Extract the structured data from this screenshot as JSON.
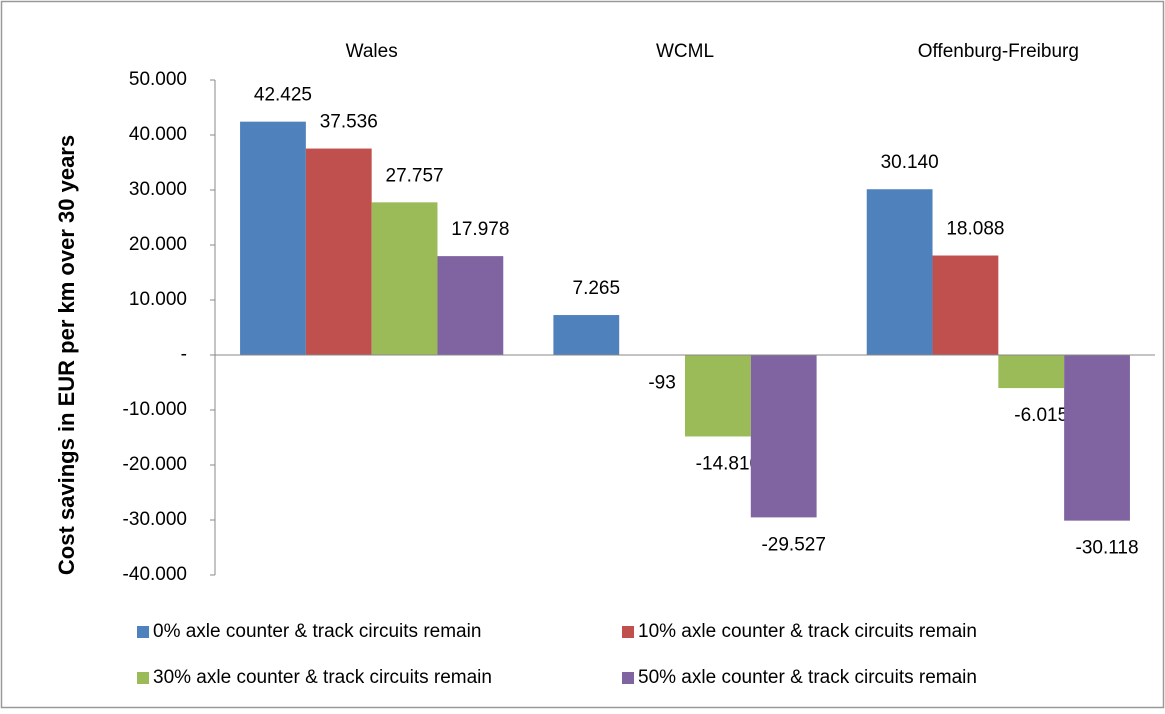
{
  "chart_data": {
    "type": "bar",
    "y_label": "Cost savings in EUR per km over 30 years",
    "categories": [
      "Wales",
      "WCML",
      "Offenburg-Freiburg"
    ],
    "series": [
      {
        "name": "0% axle counter & track circuits remain",
        "color": "#4f81bd",
        "values": [
          42425,
          7265,
          30140
        ],
        "value_labels": [
          "42.425",
          "7.265",
          "30.140"
        ]
      },
      {
        "name": "10% axle counter & track circuits remain",
        "color": "#c0504d",
        "values": [
          37536,
          -93,
          18088
        ],
        "value_labels": [
          "37.536",
          "-93",
          "18.088"
        ]
      },
      {
        "name": "30% axle counter & track circuits remain",
        "color": "#9bbb59",
        "values": [
          27757,
          -14810,
          -6015
        ],
        "value_labels": [
          "27.757",
          "-14.810",
          "-6.015"
        ]
      },
      {
        "name": "50% axle counter & track circuits remain",
        "color": "#8064a2",
        "values": [
          17978,
          -29527,
          -30118
        ],
        "value_labels": [
          "17.978",
          "-29.527",
          "-30.118"
        ]
      }
    ],
    "ylim": [
      -40000,
      50000
    ],
    "yticks": [
      {
        "value": 50000,
        "label": "50.000"
      },
      {
        "value": 40000,
        "label": "40.000"
      },
      {
        "value": 30000,
        "label": "30.000"
      },
      {
        "value": 20000,
        "label": "20.000"
      },
      {
        "value": 10000,
        "label": "10.000"
      },
      {
        "value": 0,
        "label": "-"
      },
      {
        "value": -10000,
        "label": "-10.000"
      },
      {
        "value": -20000,
        "label": "-20.000"
      },
      {
        "value": -30000,
        "label": "-30.000"
      },
      {
        "value": -40000,
        "label": "-40.000"
      }
    ],
    "grid": false
  }
}
